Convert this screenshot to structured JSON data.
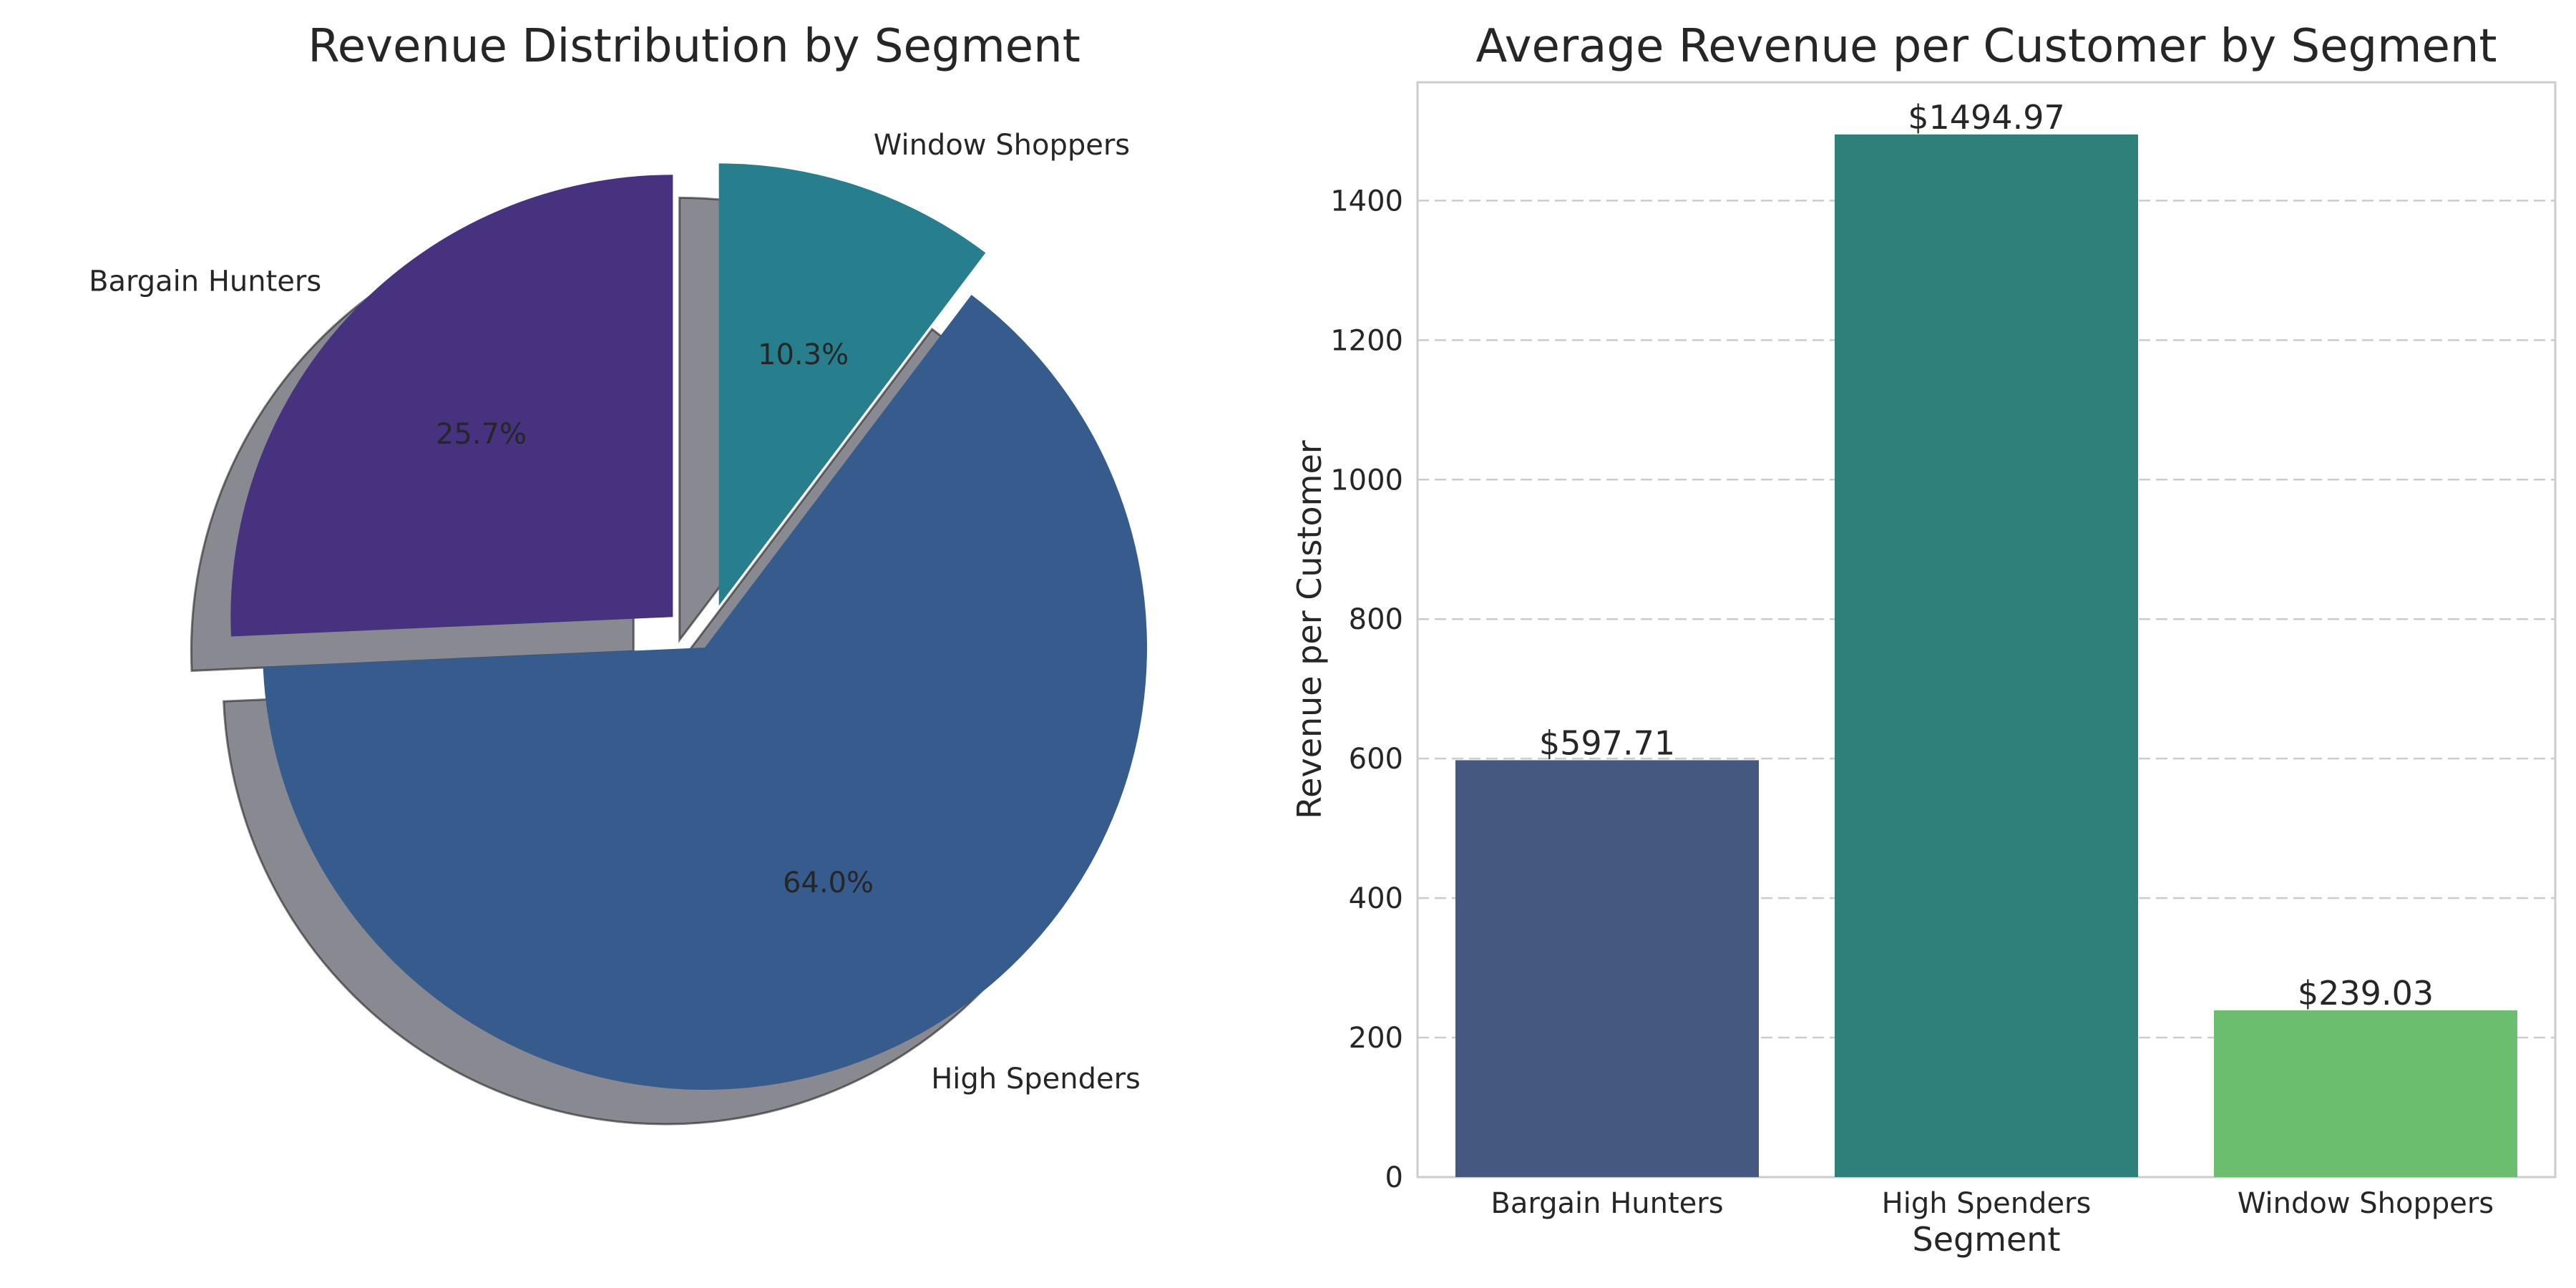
{
  "chart_data": [
    {
      "type": "pie",
      "title": "Revenue Distribution by Segment",
      "slices": [
        {
          "label": "Bargain Hunters",
          "value": 25.7,
          "pct_label": "25.7%",
          "color": "#46327e",
          "exploded": true
        },
        {
          "label": "High Spenders",
          "value": 64.0,
          "pct_label": "64.0%",
          "color": "#365c8d",
          "exploded": false
        },
        {
          "label": "Window Shoppers",
          "value": 10.3,
          "pct_label": "10.3%",
          "color": "#277f8e",
          "exploded": true
        }
      ],
      "start_angle_deg": 90,
      "direction": "counterclockwise",
      "shadow": true
    },
    {
      "type": "bar",
      "title": "Average Revenue per Customer by Segment",
      "categories": [
        "Bargain Hunters",
        "High Spenders",
        "Window Shoppers"
      ],
      "values": [
        597.71,
        1494.97,
        239.03
      ],
      "value_labels": [
        "$597.71",
        "$1494.97",
        "$239.03"
      ],
      "colors": [
        "#45587f",
        "#2d817a",
        "#6abe6e"
      ],
      "xlabel": "Segment",
      "ylabel": "Revenue per Customer",
      "ylim": [
        0,
        1569.72
      ],
      "yticks": [
        0,
        200,
        400,
        600,
        800,
        1000,
        1200,
        1400
      ],
      "grid": "y-dashed"
    }
  ]
}
